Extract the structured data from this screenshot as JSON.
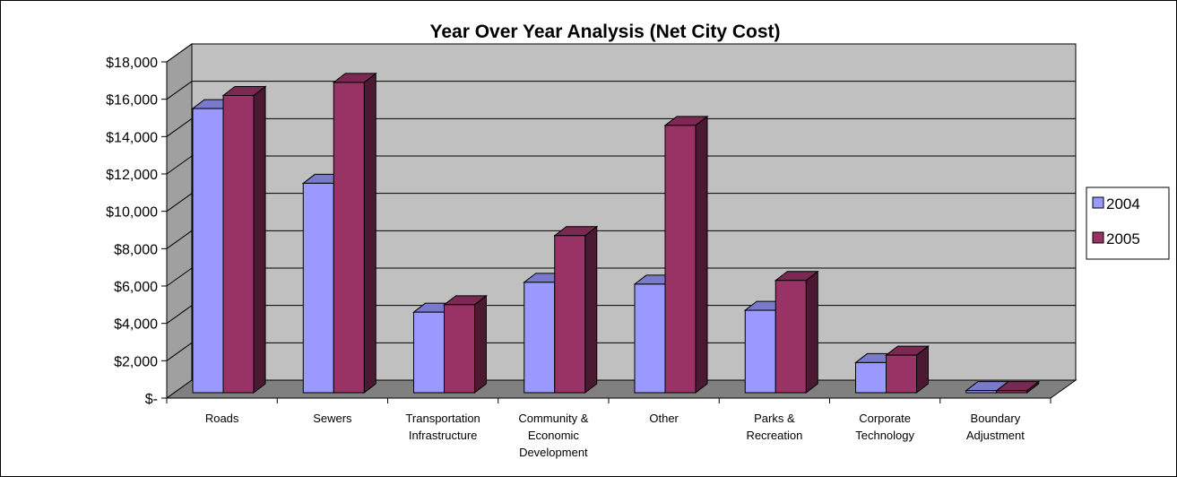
{
  "chart_data": {
    "type": "bar",
    "title": "Year Over Year Analysis (Net City Cost)",
    "xlabel": "",
    "ylabel": "",
    "ylim": [
      0,
      18000
    ],
    "yticks": [
      "$-",
      "$2,000",
      "$4,000",
      "$6,000",
      "$8,000",
      "$10,000",
      "$12,000",
      "$14,000",
      "$16,000",
      "$18,000"
    ],
    "ytick_values": [
      0,
      2000,
      4000,
      6000,
      8000,
      10000,
      12000,
      14000,
      16000,
      18000
    ],
    "categories": [
      [
        "Roads"
      ],
      [
        "Sewers"
      ],
      [
        "Transportation",
        "Infrastructure"
      ],
      [
        "Community &",
        "Economic",
        "Development"
      ],
      [
        "Other"
      ],
      [
        "Parks &",
        "Recreation"
      ],
      [
        "Corporate",
        "Technology"
      ],
      [
        "Boundary",
        "Adjustment"
      ]
    ],
    "series": [
      {
        "name": "2004",
        "color": "#9999ff",
        "side_color": "#4c4c80",
        "top_color": "#7a7acc",
        "values": [
          15500,
          11500,
          4600,
          6200,
          6100,
          4700,
          1900,
          400
        ]
      },
      {
        "name": "2005",
        "color": "#993366",
        "side_color": "#4c1933",
        "top_color": "#7a2952",
        "values": [
          16200,
          16900,
          5000,
          8700,
          14600,
          6300,
          2300,
          400
        ]
      }
    ],
    "grid": true,
    "legend": "right",
    "wall_color": "#c0c0c0",
    "floor_color": "#808080"
  }
}
